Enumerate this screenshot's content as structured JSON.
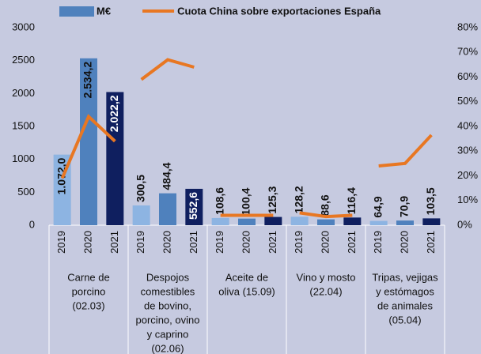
{
  "chart_data": {
    "type": "bar",
    "categories": [
      "2019",
      "2020",
      "2021",
      "2019",
      "2020",
      "2021",
      "2019",
      "2020",
      "2021",
      "2019",
      "2020",
      "2021",
      "2019",
      "2020",
      "2021"
    ],
    "groups": [
      [
        "Carne de",
        "porcino",
        "(02.03)"
      ],
      [
        "Despojos",
        "comestibles",
        "de bovino,",
        "porcino, ovino",
        "y caprino",
        "(02.06)"
      ],
      [
        "Aceite de",
        "oliva  (15.09)"
      ],
      [
        "Vino y mosto",
        "(22.04)"
      ],
      [
        "Tripas, vejigas",
        "y estómagos",
        "de animales",
        "(05.04)"
      ]
    ],
    "series": [
      {
        "name": "M€",
        "type": "bar",
        "color": "#4f81bd",
        "colors": [
          "#8db4e2",
          "#4f81bd",
          "#0f1f5f",
          "#8db4e2",
          "#4f81bd",
          "#0f1f5f",
          "#8db4e2",
          "#4f81bd",
          "#0f1f5f",
          "#8db4e2",
          "#4f81bd",
          "#0f1f5f",
          "#8db4e2",
          "#4f81bd",
          "#0f1f5f"
        ],
        "values": [
          1072.0,
          2534.2,
          2022.2,
          300.5,
          484.4,
          552.6,
          108.6,
          100.4,
          125.3,
          128.2,
          88.6,
          116.4,
          64.9,
          70.9,
          103.5
        ],
        "value_labels": [
          "1.072,0",
          "2.534,2",
          "2.022,2",
          "300,5",
          "484,4",
          "552,6",
          "108,6",
          "100,4",
          "125,3",
          "128,2",
          "88,6",
          "116,4",
          "64,9",
          "70,9",
          "103,5"
        ]
      },
      {
        "name": "Cuota China sobre exportaciones España",
        "type": "line",
        "color": "#e87722",
        "axis": "y2",
        "values": [
          19,
          44,
          34,
          59,
          67,
          64,
          4,
          4,
          4,
          5,
          3.5,
          4,
          24,
          25,
          36.5
        ]
      }
    ],
    "ylim": [
      0,
      3000
    ],
    "yticks": [
      0,
      500,
      1000,
      1500,
      2000,
      2500,
      3000
    ],
    "y2lim": [
      0,
      80
    ],
    "y2ticks": [
      {
        "value": 0,
        "label": "0%"
      },
      {
        "value": 10,
        "label": "10%"
      },
      {
        "value": 20,
        "label": "20%"
      },
      {
        "value": 30,
        "label": "30%"
      },
      {
        "value": 40,
        "label": "40%"
      },
      {
        "value": 50,
        "label": "50%"
      },
      {
        "value": 60,
        "label": "60%"
      },
      {
        "value": 70,
        "label": "70%"
      },
      {
        "value": 80,
        "label": "80%"
      }
    ],
    "legend": "top"
  }
}
